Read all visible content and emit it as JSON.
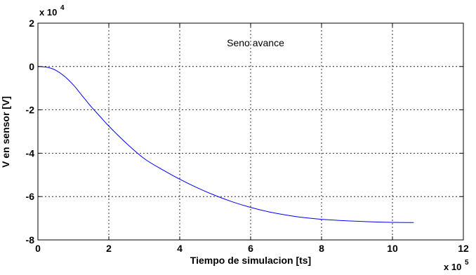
{
  "chart_data": {
    "type": "line",
    "title": "",
    "xlabel": "Tiempo de simulacion [ts]",
    "ylabel": "V en sensor [V]",
    "x_multiplier_label": {
      "base": "x 10",
      "exp": "5"
    },
    "y_multiplier_label": {
      "base": "x 10",
      "exp": "4"
    },
    "xlim": [
      0,
      12
    ],
    "ylim": [
      -8,
      2
    ],
    "x_ticks": [
      "0",
      "2",
      "4",
      "6",
      "8",
      "10",
      "12"
    ],
    "y_ticks": [
      "2",
      "0",
      "-2",
      "-4",
      "-6",
      "-8"
    ],
    "grid": true,
    "annotation": "Seno avance",
    "series": [
      {
        "color": "#0000ff",
        "x": [
          0,
          0.1,
          0.3,
          0.5,
          0.75,
          1.0,
          1.25,
          1.5,
          1.75,
          2.0,
          2.5,
          3.0,
          3.5,
          4.0,
          4.5,
          5.0,
          5.5,
          6.0,
          6.5,
          7.0,
          7.5,
          8.0,
          8.5,
          9.0,
          9.5,
          10.0,
          10.4,
          10.6
        ],
        "y": [
          0,
          -0.01,
          -0.05,
          -0.17,
          -0.45,
          -0.85,
          -1.35,
          -1.85,
          -2.3,
          -2.75,
          -3.55,
          -4.25,
          -4.75,
          -5.2,
          -5.6,
          -5.95,
          -6.25,
          -6.5,
          -6.7,
          -6.85,
          -6.97,
          -7.05,
          -7.1,
          -7.14,
          -7.17,
          -7.19,
          -7.2,
          -7.2
        ]
      }
    ]
  }
}
